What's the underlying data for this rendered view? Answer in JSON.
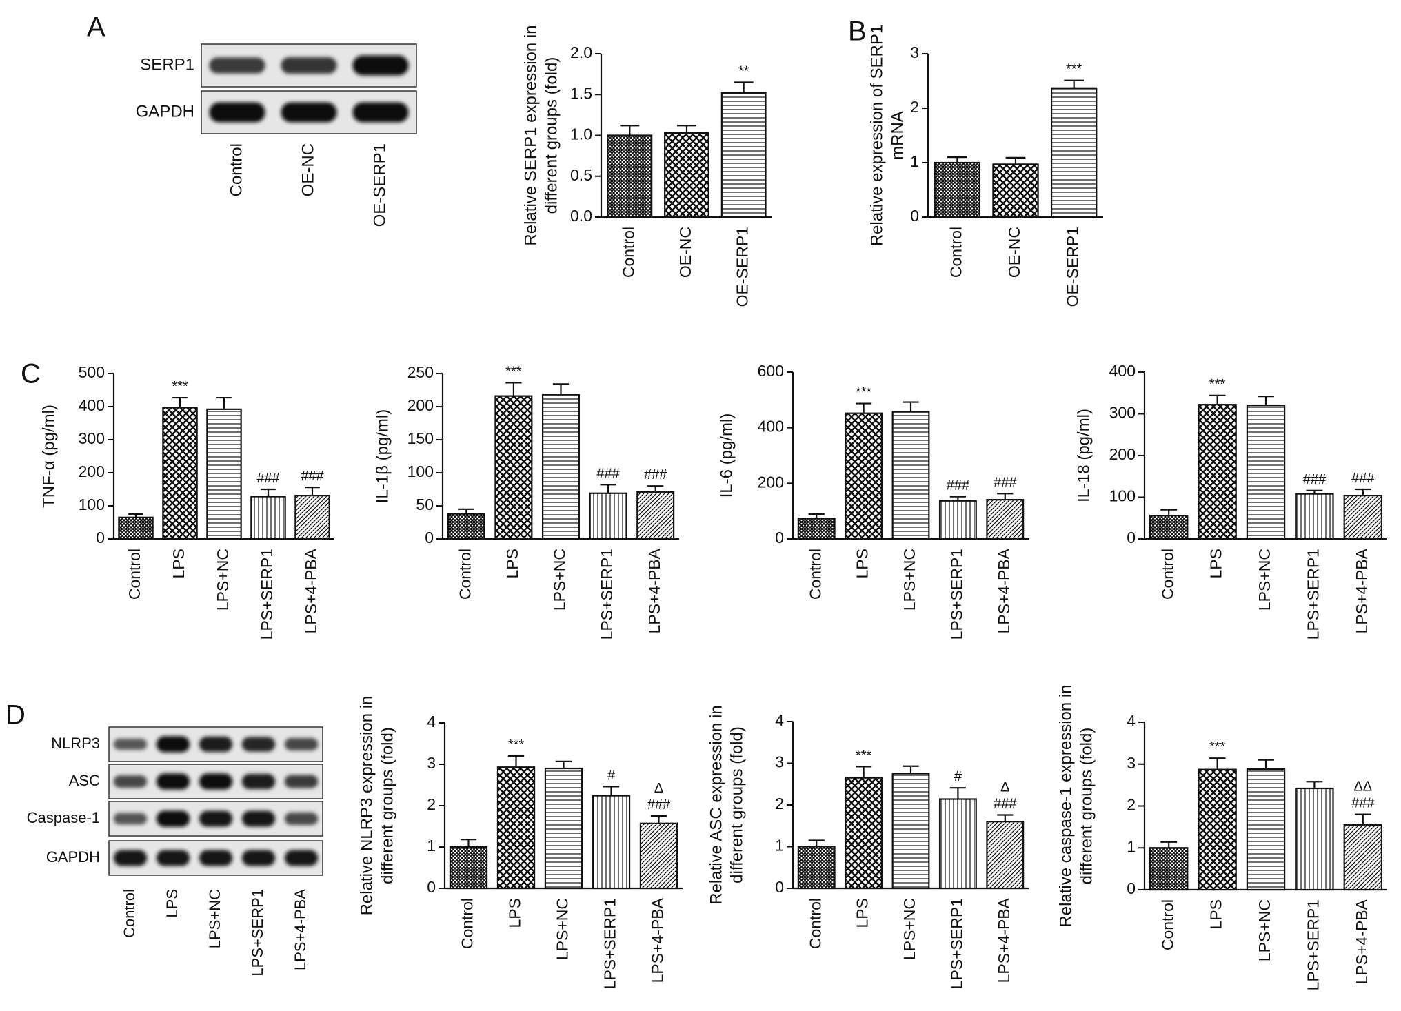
{
  "panel_labels": [
    "A",
    "B",
    "C",
    "D"
  ],
  "blots": [
    {
      "id": "A",
      "rows": [
        {
          "label": "SERP1",
          "intensities": [
            0.55,
            0.6,
            0.95
          ]
        },
        {
          "label": "GAPDH",
          "intensities": [
            0.95,
            0.95,
            0.95
          ]
        }
      ],
      "lanes": [
        "Control",
        "OE-NC",
        "OE-SERP1"
      ]
    },
    {
      "id": "D",
      "rows": [
        {
          "label": "NLRP3",
          "intensities": [
            0.3,
            0.95,
            0.85,
            0.75,
            0.45
          ]
        },
        {
          "label": "ASC",
          "intensities": [
            0.45,
            0.95,
            0.95,
            0.85,
            0.55
          ]
        },
        {
          "label": "Caspase-1",
          "intensities": [
            0.35,
            0.95,
            0.9,
            0.9,
            0.45
          ]
        },
        {
          "label": "GAPDH",
          "intensities": [
            0.9,
            0.9,
            0.9,
            0.9,
            0.9
          ]
        }
      ],
      "lanes": [
        "Control",
        "LPS",
        "LPS+NC",
        "LPS+SERP1",
        "LPS+4-PBA"
      ]
    }
  ],
  "chart_data": [
    {
      "id": "A-bar",
      "type": "bar",
      "categories": [
        "Control",
        "OE-NC",
        "OE-SERP1"
      ],
      "values": [
        1.0,
        1.03,
        1.52
      ],
      "errors": [
        0.12,
        0.09,
        0.13
      ],
      "patterns": [
        "dense",
        "check",
        "hlines"
      ],
      "annotations": [
        [],
        [],
        [
          "**"
        ]
      ],
      "ylabel": [
        "Relative SERP1 expression in",
        "different groups (fold)"
      ],
      "ylim": [
        0,
        2.0
      ],
      "yticks": [
        "0.0",
        "0.5",
        "1.0",
        "1.5",
        "2.0"
      ]
    },
    {
      "id": "B-bar",
      "type": "bar",
      "categories": [
        "Control",
        "OE-NC",
        "OE-SERP1"
      ],
      "values": [
        1.0,
        0.97,
        2.37
      ],
      "errors": [
        0.1,
        0.12,
        0.14
      ],
      "patterns": [
        "dense",
        "check",
        "hlines"
      ],
      "annotations": [
        [],
        [],
        [
          "***"
        ]
      ],
      "ylabel": [
        "Relative expression of SERP1",
        "mRNA"
      ],
      "ylim": [
        0,
        3
      ],
      "yticks": [
        "0",
        "1",
        "2",
        "3"
      ]
    },
    {
      "id": "C-TNF",
      "type": "bar",
      "categories": [
        "Control",
        "LPS",
        "LPS+NC",
        "LPS+SERP1",
        "LPS+4-PBA"
      ],
      "values": [
        65,
        397,
        392,
        128,
        131
      ],
      "errors": [
        10,
        30,
        35,
        22,
        25
      ],
      "patterns": [
        "dense",
        "check",
        "hlines",
        "vlines",
        "diag"
      ],
      "annotations": [
        [],
        [
          "***"
        ],
        [],
        [
          "###"
        ],
        [
          "###"
        ]
      ],
      "ylabel": [
        "TNF-α (pg/ml)"
      ],
      "ylim": [
        0,
        500
      ],
      "yticks": [
        "0",
        "100",
        "200",
        "300",
        "400",
        "500"
      ]
    },
    {
      "id": "C-IL1b",
      "type": "bar",
      "categories": [
        "Control",
        "LPS",
        "LPS+NC",
        "LPS+SERP1",
        "LPS+4-PBA"
      ],
      "values": [
        38,
        216,
        218,
        69,
        71
      ],
      "errors": [
        7,
        20,
        16,
        13,
        9
      ],
      "patterns": [
        "dense",
        "check",
        "hlines",
        "vlines",
        "diag"
      ],
      "annotations": [
        [],
        [
          "***"
        ],
        [],
        [
          "###"
        ],
        [
          "###"
        ]
      ],
      "ylabel": [
        "IL-1β (pg/ml)"
      ],
      "ylim": [
        0,
        250
      ],
      "yticks": [
        "0",
        "50",
        "100",
        "150",
        "200",
        "250"
      ]
    },
    {
      "id": "C-IL6",
      "type": "bar",
      "categories": [
        "Control",
        "LPS",
        "LPS+NC",
        "LPS+SERP1",
        "LPS+4-PBA"
      ],
      "values": [
        74,
        452,
        457,
        137,
        141
      ],
      "errors": [
        15,
        35,
        35,
        15,
        22
      ],
      "patterns": [
        "dense",
        "check",
        "hlines",
        "vlines",
        "diag"
      ],
      "annotations": [
        [],
        [
          "***"
        ],
        [],
        [
          "###"
        ],
        [
          "###"
        ]
      ],
      "ylabel": [
        "IL-6 (pg/ml)"
      ],
      "ylim": [
        0,
        600
      ],
      "yticks": [
        "0",
        "200",
        "400",
        "600"
      ]
    },
    {
      "id": "C-IL18",
      "type": "bar",
      "categories": [
        "Control",
        "LPS",
        "LPS+NC",
        "LPS+SERP1",
        "LPS+4-PBA"
      ],
      "values": [
        56,
        322,
        320,
        108,
        104
      ],
      "errors": [
        14,
        22,
        22,
        8,
        15
      ],
      "patterns": [
        "dense",
        "check",
        "hlines",
        "vlines",
        "diag"
      ],
      "annotations": [
        [],
        [
          "***"
        ],
        [],
        [
          "###"
        ],
        [
          "###"
        ]
      ],
      "ylabel": [
        "IL-18 (pg/ml)"
      ],
      "ylim": [
        0,
        400
      ],
      "yticks": [
        "0",
        "100",
        "200",
        "300",
        "400"
      ]
    },
    {
      "id": "D-NLRP3",
      "type": "bar",
      "categories": [
        "Control",
        "LPS",
        "LPS+NC",
        "LPS+SERP1",
        "LPS+4-PBA"
      ],
      "values": [
        1.0,
        2.93,
        2.9,
        2.24,
        1.57
      ],
      "errors": [
        0.18,
        0.27,
        0.17,
        0.22,
        0.18
      ],
      "patterns": [
        "dense",
        "check",
        "hlines",
        "vlines",
        "diag"
      ],
      "annotations": [
        [],
        [
          "***"
        ],
        [],
        [
          "#"
        ],
        [
          "Δ",
          "###"
        ]
      ],
      "ylabel": [
        "Relative NLRP3 expression in",
        "different groups (fold)"
      ],
      "ylim": [
        0,
        4
      ],
      "yticks": [
        "0",
        "1",
        "2",
        "3",
        "4"
      ]
    },
    {
      "id": "D-ASC",
      "type": "bar",
      "categories": [
        "Control",
        "LPS",
        "LPS+NC",
        "LPS+SERP1",
        "LPS+4-PBA"
      ],
      "values": [
        1.0,
        2.65,
        2.75,
        2.14,
        1.6
      ],
      "errors": [
        0.15,
        0.27,
        0.18,
        0.27,
        0.16
      ],
      "patterns": [
        "dense",
        "check",
        "hlines",
        "vlines",
        "diag"
      ],
      "annotations": [
        [],
        [
          "***"
        ],
        [],
        [
          "#"
        ],
        [
          "Δ",
          "###"
        ]
      ],
      "ylabel": [
        "Relative ASC expression in",
        "different groups (fold)"
      ],
      "ylim": [
        0,
        4
      ],
      "yticks": [
        "0",
        "1",
        "2",
        "3",
        "4"
      ]
    },
    {
      "id": "D-Casp1",
      "type": "bar",
      "categories": [
        "Control",
        "LPS",
        "LPS+NC",
        "LPS+SERP1",
        "LPS+4-PBA"
      ],
      "values": [
        1.0,
        2.87,
        2.88,
        2.42,
        1.55
      ],
      "errors": [
        0.14,
        0.27,
        0.22,
        0.16,
        0.25
      ],
      "patterns": [
        "dense",
        "check",
        "hlines",
        "vlines",
        "diag"
      ],
      "annotations": [
        [],
        [
          "***"
        ],
        [],
        [],
        [
          "ΔΔ",
          "###"
        ]
      ],
      "ylabel": [
        "Relative caspase-1 expression in",
        "different groups (fold)"
      ],
      "ylim": [
        0,
        4
      ],
      "yticks": [
        "0",
        "1",
        "2",
        "3",
        "4"
      ]
    }
  ]
}
